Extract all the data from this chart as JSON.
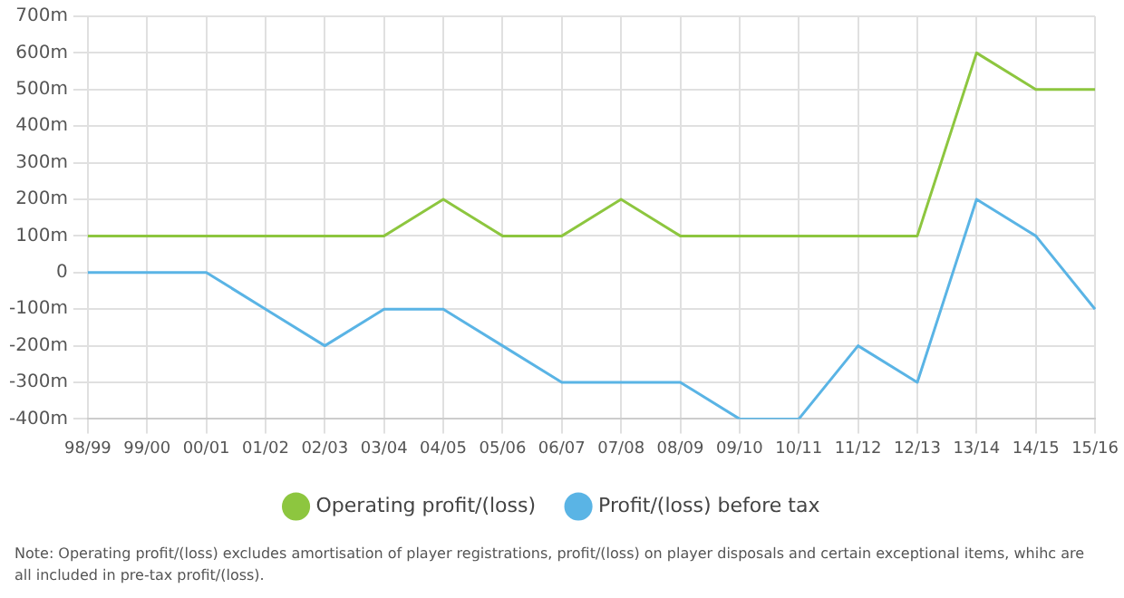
{
  "chart_data": {
    "type": "line",
    "categories": [
      "98/99",
      "99/00",
      "00/01",
      "01/02",
      "02/03",
      "03/04",
      "04/05",
      "05/06",
      "06/07",
      "07/08",
      "08/09",
      "09/10",
      "10/11",
      "11/12",
      "12/13",
      "13/14",
      "14/15",
      "15/16"
    ],
    "series": [
      {
        "name": "Operating profit/(loss)",
        "color": "#8dc63f",
        "values": [
          100,
          100,
          100,
          100,
          100,
          100,
          200,
          100,
          100,
          200,
          100,
          100,
          100,
          100,
          100,
          600,
          500,
          500
        ]
      },
      {
        "name": "Profit/(loss) before tax",
        "color": "#5ab4e5",
        "values": [
          0,
          0,
          0,
          -100,
          -200,
          -100,
          -100,
          -200,
          -300,
          -300,
          -300,
          -400,
          -400,
          -200,
          -300,
          200,
          100,
          -100
        ]
      }
    ],
    "ylim": [
      -400,
      700
    ],
    "yticks": [
      {
        "value": -400,
        "label": "-400m"
      },
      {
        "value": -300,
        "label": "-300m"
      },
      {
        "value": -200,
        "label": "-200m"
      },
      {
        "value": -100,
        "label": "-100m"
      },
      0,
      {
        "value": 100,
        "label": "100m"
      },
      {
        "value": 200,
        "label": "200m"
      },
      {
        "value": 300,
        "label": "300m"
      },
      {
        "value": 400,
        "label": "400m"
      },
      {
        "value": 500,
        "label": "500m"
      },
      {
        "value": 600,
        "label": "600m"
      },
      {
        "value": 700,
        "label": "700m"
      }
    ],
    "grid": true,
    "legend": "bottom",
    "marker": "none",
    "line_style": "solid",
    "annotations": [
      "Note:  Operating profit/(loss) excludes amortisation of player registrations, profit/(loss) on player disposals and certain exceptional items, whihc are all included in pre-tax profit/(loss)."
    ]
  }
}
